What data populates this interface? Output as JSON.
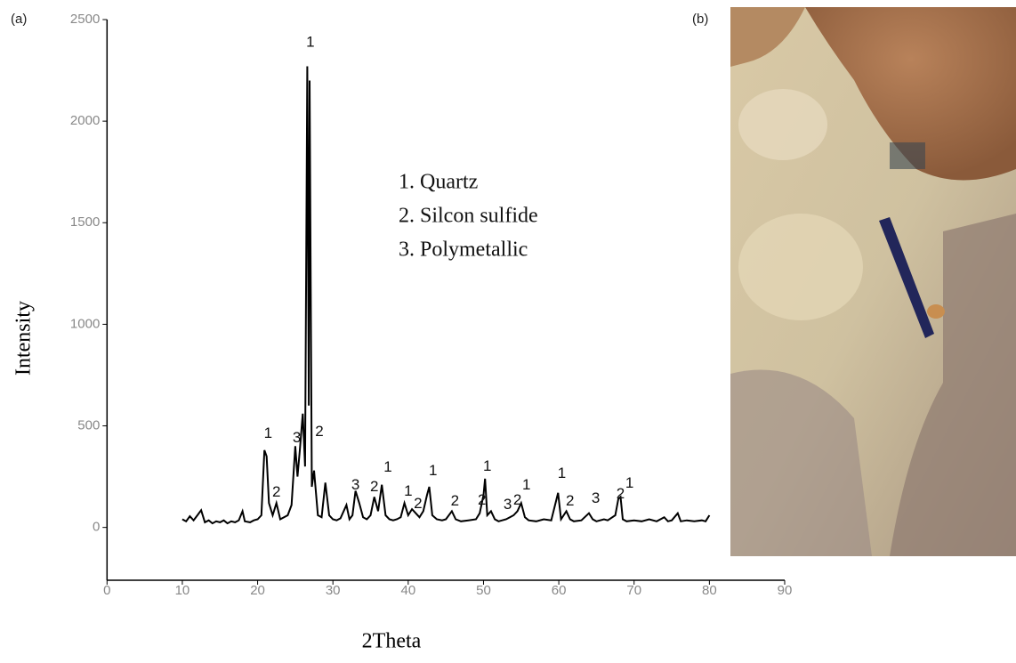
{
  "panel_labels": [
    "(a)",
    "(b)"
  ],
  "chart_data": {
    "type": "line",
    "xlabel": "2Theta",
    "ylabel": "Intensity",
    "color": "#000000",
    "xlim": [
      0,
      90
    ],
    "ylim": [
      -260,
      2500
    ],
    "xticks": [
      0,
      10,
      20,
      30,
      40,
      50,
      60,
      70,
      80,
      90
    ],
    "yticks": [
      0,
      500,
      1000,
      1500,
      2000,
      2500
    ],
    "notes": [
      "1. Quartz",
      "2. Silcon sulfide",
      "3. Polymetallic"
    ],
    "x": [
      10,
      10.5,
      11,
      11.5,
      12,
      12.5,
      13,
      13.5,
      14,
      14.5,
      15,
      15.5,
      16,
      16.5,
      17,
      17.5,
      18,
      18.3,
      19,
      19.5,
      20,
      20.5,
      20.9,
      21.2,
      21.5,
      22,
      22.5,
      23,
      23.5,
      24,
      24.5,
      25,
      25.3,
      25.6,
      26,
      26.3,
      26.6,
      26.8,
      26.9,
      27.2,
      27.5,
      28,
      28.5,
      29,
      29.5,
      30,
      30.5,
      31,
      31.8,
      32.2,
      32.6,
      33,
      33.5,
      34,
      34.5,
      35,
      35.5,
      36,
      36.5,
      37,
      37.5,
      38,
      38.5,
      39,
      39.5,
      40,
      40.5,
      41,
      41.5,
      42,
      42.5,
      42.8,
      43.2,
      43.8,
      44.5,
      45,
      45.8,
      46.3,
      47,
      48,
      49,
      49.5,
      50,
      50.2,
      50.5,
      51,
      51.5,
      52,
      53,
      53.5,
      54,
      54.5,
      55,
      55.5,
      56,
      57,
      58,
      59,
      59.9,
      60.3,
      61,
      61.5,
      62,
      63,
      64,
      64.5,
      65,
      66,
      66.5,
      67.5,
      67.9,
      68.2,
      68.5,
      69,
      70,
      71,
      72,
      73,
      74,
      74.5,
      75,
      75.8,
      76.2,
      77,
      78,
      79,
      79.5,
      80
    ],
    "values": [
      40,
      30,
      55,
      35,
      60,
      85,
      25,
      35,
      20,
      30,
      25,
      35,
      20,
      30,
      25,
      35,
      80,
      30,
      25,
      35,
      40,
      60,
      380,
      350,
      120,
      60,
      120,
      40,
      50,
      60,
      110,
      400,
      250,
      380,
      560,
      300,
      2270,
      600,
      2200,
      200,
      280,
      60,
      50,
      220,
      60,
      40,
      35,
      45,
      110,
      40,
      60,
      180,
      120,
      50,
      40,
      60,
      150,
      80,
      210,
      60,
      40,
      35,
      40,
      50,
      120,
      60,
      90,
      70,
      50,
      80,
      160,
      200,
      60,
      40,
      35,
      40,
      80,
      40,
      30,
      35,
      40,
      70,
      160,
      240,
      60,
      80,
      40,
      30,
      40,
      50,
      60,
      80,
      120,
      50,
      35,
      30,
      40,
      35,
      170,
      40,
      80,
      40,
      30,
      35,
      70,
      40,
      30,
      40,
      35,
      60,
      140,
      150,
      40,
      30,
      35,
      30,
      40,
      30,
      50,
      30,
      35,
      70,
      30,
      35,
      30,
      35,
      30,
      60
    ],
    "annotations": [
      {
        "text": "1",
        "x": 27.0,
        "y": 2386
      },
      {
        "text": "1",
        "x": 21.4,
        "y": 460
      },
      {
        "text": "2",
        "x": 22.5,
        "y": 171
      },
      {
        "text": "3",
        "x": 25.2,
        "y": 439
      },
      {
        "text": "2",
        "x": 28.2,
        "y": 469
      },
      {
        "text": "3",
        "x": 33.0,
        "y": 206
      },
      {
        "text": "2",
        "x": 35.5,
        "y": 197
      },
      {
        "text": "1",
        "x": 37.3,
        "y": 294
      },
      {
        "text": "1",
        "x": 40.0,
        "y": 175
      },
      {
        "text": "2",
        "x": 41.3,
        "y": 114
      },
      {
        "text": "1",
        "x": 43.3,
        "y": 276
      },
      {
        "text": "2",
        "x": 46.2,
        "y": 127
      },
      {
        "text": "1",
        "x": 50.5,
        "y": 298
      },
      {
        "text": "2",
        "x": 49.8,
        "y": 132
      },
      {
        "text": "3",
        "x": 53.2,
        "y": 110
      },
      {
        "text": "2",
        "x": 54.5,
        "y": 132
      },
      {
        "text": "1",
        "x": 55.7,
        "y": 206
      },
      {
        "text": "1",
        "x": 60.4,
        "y": 263
      },
      {
        "text": "2",
        "x": 61.5,
        "y": 127
      },
      {
        "text": "3",
        "x": 64.9,
        "y": 140
      },
      {
        "text": "2",
        "x": 68.2,
        "y": 162
      },
      {
        "text": "1",
        "x": 69.4,
        "y": 215
      }
    ]
  }
}
